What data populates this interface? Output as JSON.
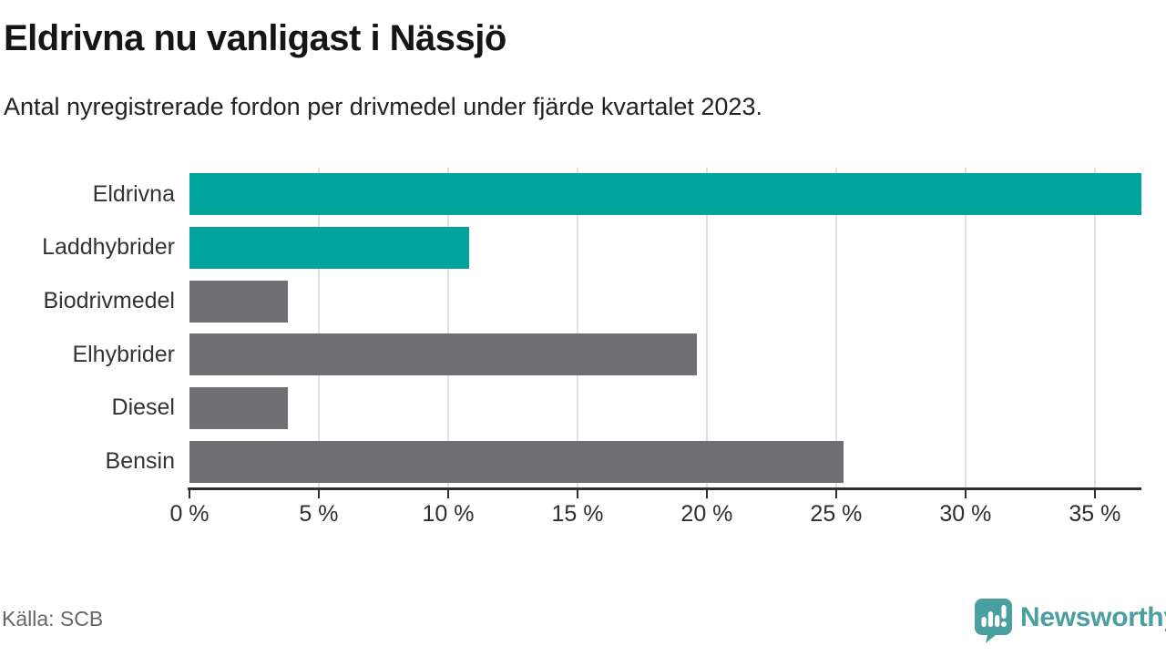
{
  "header": {
    "title": "Eldrivna nu vanligast i Nässjö",
    "subtitle": "Antal nyregistrerade fordon per drivmedel under fjärde kvartalet 2023."
  },
  "chart_data": {
    "type": "bar",
    "orientation": "horizontal",
    "categories": [
      "Eldrivna",
      "Laddhybrider",
      "Biodrivmedel",
      "Elhybrider",
      "Diesel",
      "Bensin"
    ],
    "values": [
      36.8,
      10.8,
      3.8,
      19.6,
      3.8,
      25.3
    ],
    "bar_color_keys": [
      "highlight",
      "highlight",
      "default",
      "default",
      "default",
      "default"
    ],
    "xlim": [
      0,
      36.8
    ],
    "xticks": [
      0,
      5,
      10,
      15,
      20,
      25,
      30,
      35
    ],
    "tick_suffix": " %",
    "grid": true,
    "legend": "none",
    "xlabel": "",
    "ylabel": ""
  },
  "colors": {
    "highlight": "#00a49c",
    "default": "#6e6e73",
    "grid": "#e0e0e0",
    "axis": "#2e2e2e",
    "brand": "#4aa0a0"
  },
  "footer": {
    "source": "Källa: SCB",
    "brand": "Newsworthy"
  }
}
